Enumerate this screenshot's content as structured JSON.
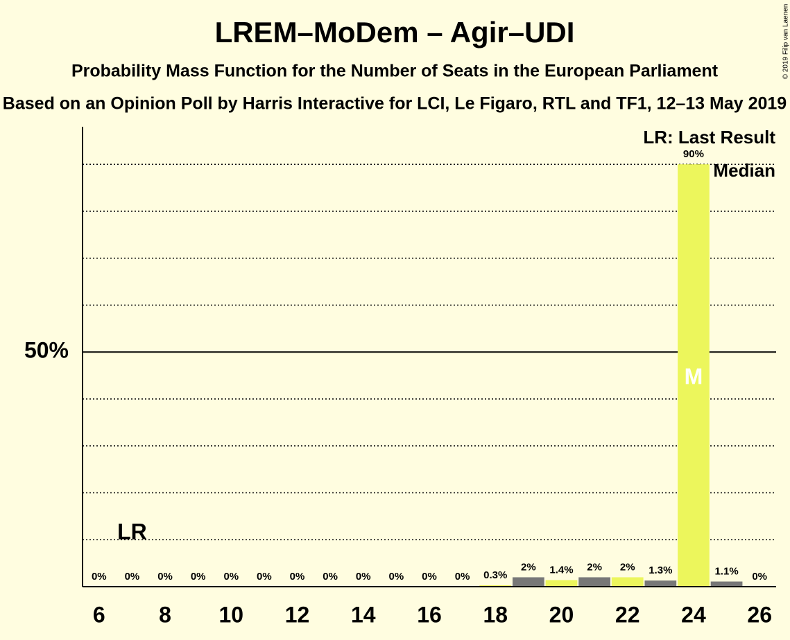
{
  "chart_data": {
    "type": "bar",
    "title": "LREM–MoDem – Agir–UDI",
    "subtitle": "Probability Mass Function for the Number of Seats in the European Parliament",
    "subtitle2": "Based on an Opinion Poll by Harris Interactive for LCI, Le Figaro, RTL and TF1, 12–13 May 2019",
    "copyright": "© 2019 Filip van Laenen",
    "x": [
      6,
      7,
      8,
      9,
      10,
      11,
      12,
      13,
      14,
      15,
      16,
      17,
      18,
      19,
      20,
      21,
      22,
      23,
      24,
      25,
      26
    ],
    "values": [
      0,
      0,
      0,
      0,
      0,
      0,
      0,
      0,
      0,
      0,
      0,
      0,
      0.3,
      2,
      1.4,
      2,
      2,
      1.3,
      90,
      1.1,
      0
    ],
    "value_labels": [
      "0%",
      "0%",
      "0%",
      "0%",
      "0%",
      "0%",
      "0%",
      "0%",
      "0%",
      "0%",
      "0%",
      "0%",
      "0.3%",
      "2%",
      "1.4%",
      "2%",
      "2%",
      "1.3%",
      "90%",
      "1.1%",
      "0%"
    ],
    "colors": [
      "#ecf65c",
      "#777777",
      "#ecf65c",
      "#777777",
      "#ecf65c",
      "#777777",
      "#ecf65c",
      "#777777",
      "#ecf65c",
      "#777777",
      "#ecf65c",
      "#777777",
      "#ecf65c",
      "#777777",
      "#ecf65c",
      "#777777",
      "#ecf65c",
      "#777777",
      "#ecf65c",
      "#777777",
      "#ecf65c"
    ],
    "xlim": [
      5.5,
      26.5
    ],
    "xticks": [
      6,
      8,
      10,
      12,
      14,
      16,
      18,
      20,
      22,
      24,
      26
    ],
    "ylim": [
      0,
      98
    ],
    "yticks": [
      {
        "value": 50,
        "label": "50%"
      }
    ],
    "minor_yticks": [
      10,
      20,
      30,
      40,
      60,
      70,
      80,
      90
    ],
    "last_result": {
      "x": 7,
      "label": "LR"
    },
    "median": {
      "x": 24,
      "label": "M"
    },
    "legend": [
      "LR: Last Result",
      "M: Median"
    ]
  }
}
